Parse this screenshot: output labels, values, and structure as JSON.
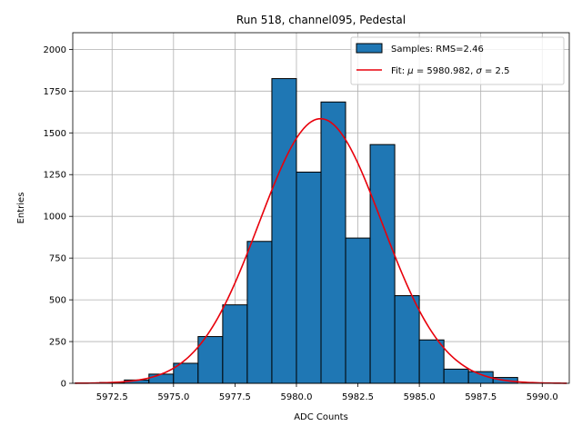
{
  "chart_data": {
    "type": "bar",
    "title": "Run 518, channel095, Pedestal",
    "xlabel": "ADC Counts",
    "ylabel": "Entries",
    "xlim": [
      5970.9,
      5991.1
    ],
    "ylim": [
      0,
      2100
    ],
    "grid": true,
    "legend_position": "top-right",
    "x_ticks": [
      5972.5,
      5975.0,
      5977.5,
      5980.0,
      5982.5,
      5985.0,
      5987.5,
      5990.0
    ],
    "x_tick_labels": [
      "5972.5",
      "5975.0",
      "5977.5",
      "5980.0",
      "5982.5",
      "5985.0",
      "5987.5",
      "5990.0"
    ],
    "y_ticks": [
      0,
      250,
      500,
      750,
      1000,
      1250,
      1500,
      1750,
      2000
    ],
    "y_tick_labels": [
      "0",
      "250",
      "500",
      "750",
      "1000",
      "1250",
      "1500",
      "1750",
      "2000"
    ],
    "bins": {
      "edges": [
        5971,
        5972,
        5973,
        5974,
        5975,
        5976,
        5977,
        5978,
        5979,
        5980,
        5981,
        5982,
        5983,
        5984,
        5985,
        5986,
        5987,
        5988,
        5989,
        5990,
        5991
      ],
      "counts": [
        2,
        5,
        20,
        55,
        120,
        280,
        470,
        850,
        1825,
        1265,
        1685,
        870,
        1430,
        525,
        260,
        85,
        70,
        35,
        0,
        0
      ]
    },
    "series": [
      {
        "name": "Samples: RMS=2.46",
        "kind": "histogram",
        "color": "#1f77b4",
        "edge_color": "#000000"
      },
      {
        "name": "Fit: μ = 5980.982, σ = 2.5",
        "kind": "line",
        "color": "#e8000b",
        "mu": 5980.982,
        "sigma": 2.5,
        "amplitude": 1585,
        "x_range": [
          5971,
          5991
        ]
      }
    ]
  }
}
